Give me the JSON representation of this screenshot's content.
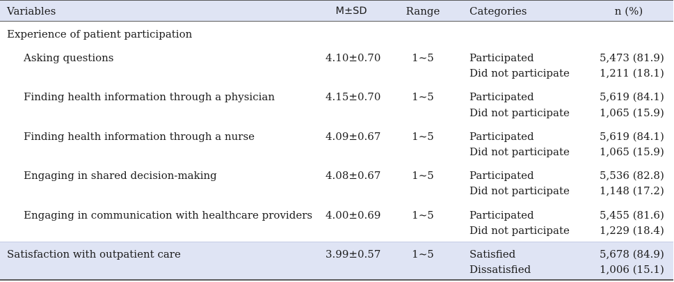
{
  "header": {
    "variables": "Variables",
    "msd": "M±SD",
    "range": "Range",
    "categories": "Categories",
    "n_pct": "n (%)"
  },
  "section": {
    "title": "Experience of patient participation"
  },
  "rows": [
    {
      "label": "Asking questions",
      "msd": "4.10±0.70",
      "range": "1~5",
      "cat1": "Participated",
      "val1": "5,473 (81.9)",
      "cat2": "Did not participate",
      "val2": "1,211 (18.1)"
    },
    {
      "label": "Finding health information through a physician",
      "msd": "4.15±0.70",
      "range": "1~5",
      "cat1": "Participated",
      "val1": "5,619 (84.1)",
      "cat2": "Did not participate",
      "val2": "1,065 (15.9)"
    },
    {
      "label": "Finding health information through a nurse",
      "msd": "4.09±0.67",
      "range": "1~5",
      "cat1": "Participated",
      "val1": "5,619 (84.1)",
      "cat2": "Did not participate",
      "val2": "1,065 (15.9)"
    },
    {
      "label": "Engaging in shared decision-making",
      "msd": "4.08±0.67",
      "range": "1~5",
      "cat1": "Participated",
      "val1": "5,536 (82.8)",
      "cat2": "Did not participate",
      "val2": "1,148 (17.2)"
    },
    {
      "label": "Engaging in communication with healthcare providers",
      "msd": "4.00±0.69",
      "range": "1~5",
      "cat1": "Participated",
      "val1": "5,455 (81.6)",
      "cat2": "Did not participate",
      "val2": "1,229 (18.4)"
    }
  ],
  "satisfaction": {
    "label": "Satisfaction with outpatient care",
    "msd": "3.99±0.57",
    "range": "1~5",
    "cat1": "Satisfied",
    "val1": "5,678 (84.9)",
    "cat2": "Dissatisfied",
    "val2": "1,006 (15.1)"
  },
  "colors": {
    "header_bg": "#dfe4f4",
    "rule": "#5a5a5a"
  }
}
